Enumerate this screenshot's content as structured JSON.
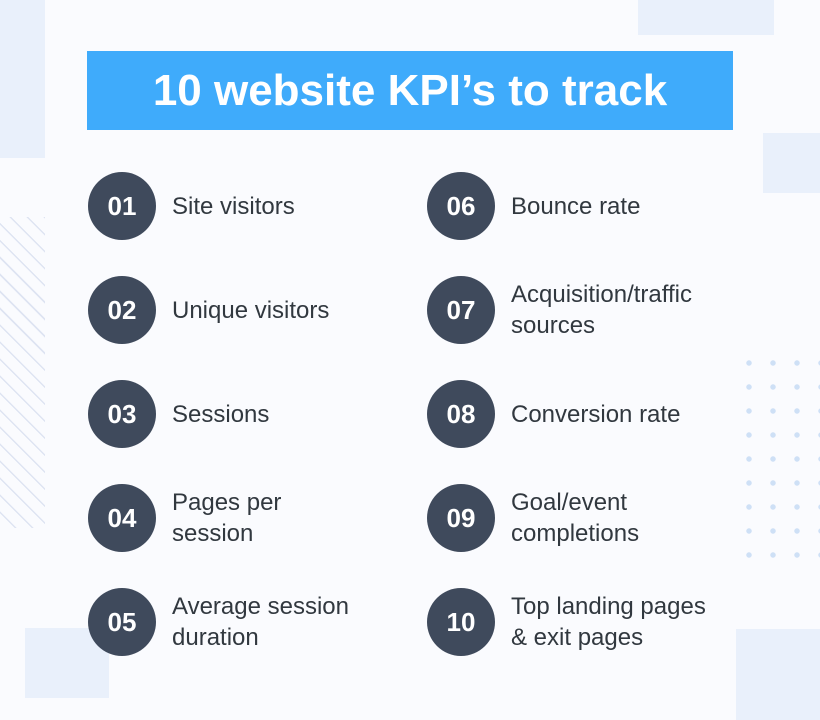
{
  "title": "10 website KPI’s to track",
  "colors": {
    "accent": "#3FABFB",
    "badge": "#3F4A5C",
    "text": "#31383F",
    "title_text": "#FFFFFF",
    "background": "#FAFBFE",
    "pale": "#E9F0FB",
    "dot": "#CEE0F6",
    "stripe": "#DEE4F2"
  },
  "items": [
    {
      "number": "01",
      "label": "Site visitors"
    },
    {
      "number": "02",
      "label": "Unique visitors"
    },
    {
      "number": "03",
      "label": "Sessions"
    },
    {
      "number": "04",
      "label": "Pages per\nsession"
    },
    {
      "number": "05",
      "label": "Average session\nduration"
    },
    {
      "number": "06",
      "label": "Bounce rate"
    },
    {
      "number": "07",
      "label": "Acquisition/traffic\nsources"
    },
    {
      "number": "08",
      "label": "Conversion rate"
    },
    {
      "number": "09",
      "label": "Goal/event\ncompletions"
    },
    {
      "number": "10",
      "label": "Top landing pages\n& exit pages"
    }
  ]
}
